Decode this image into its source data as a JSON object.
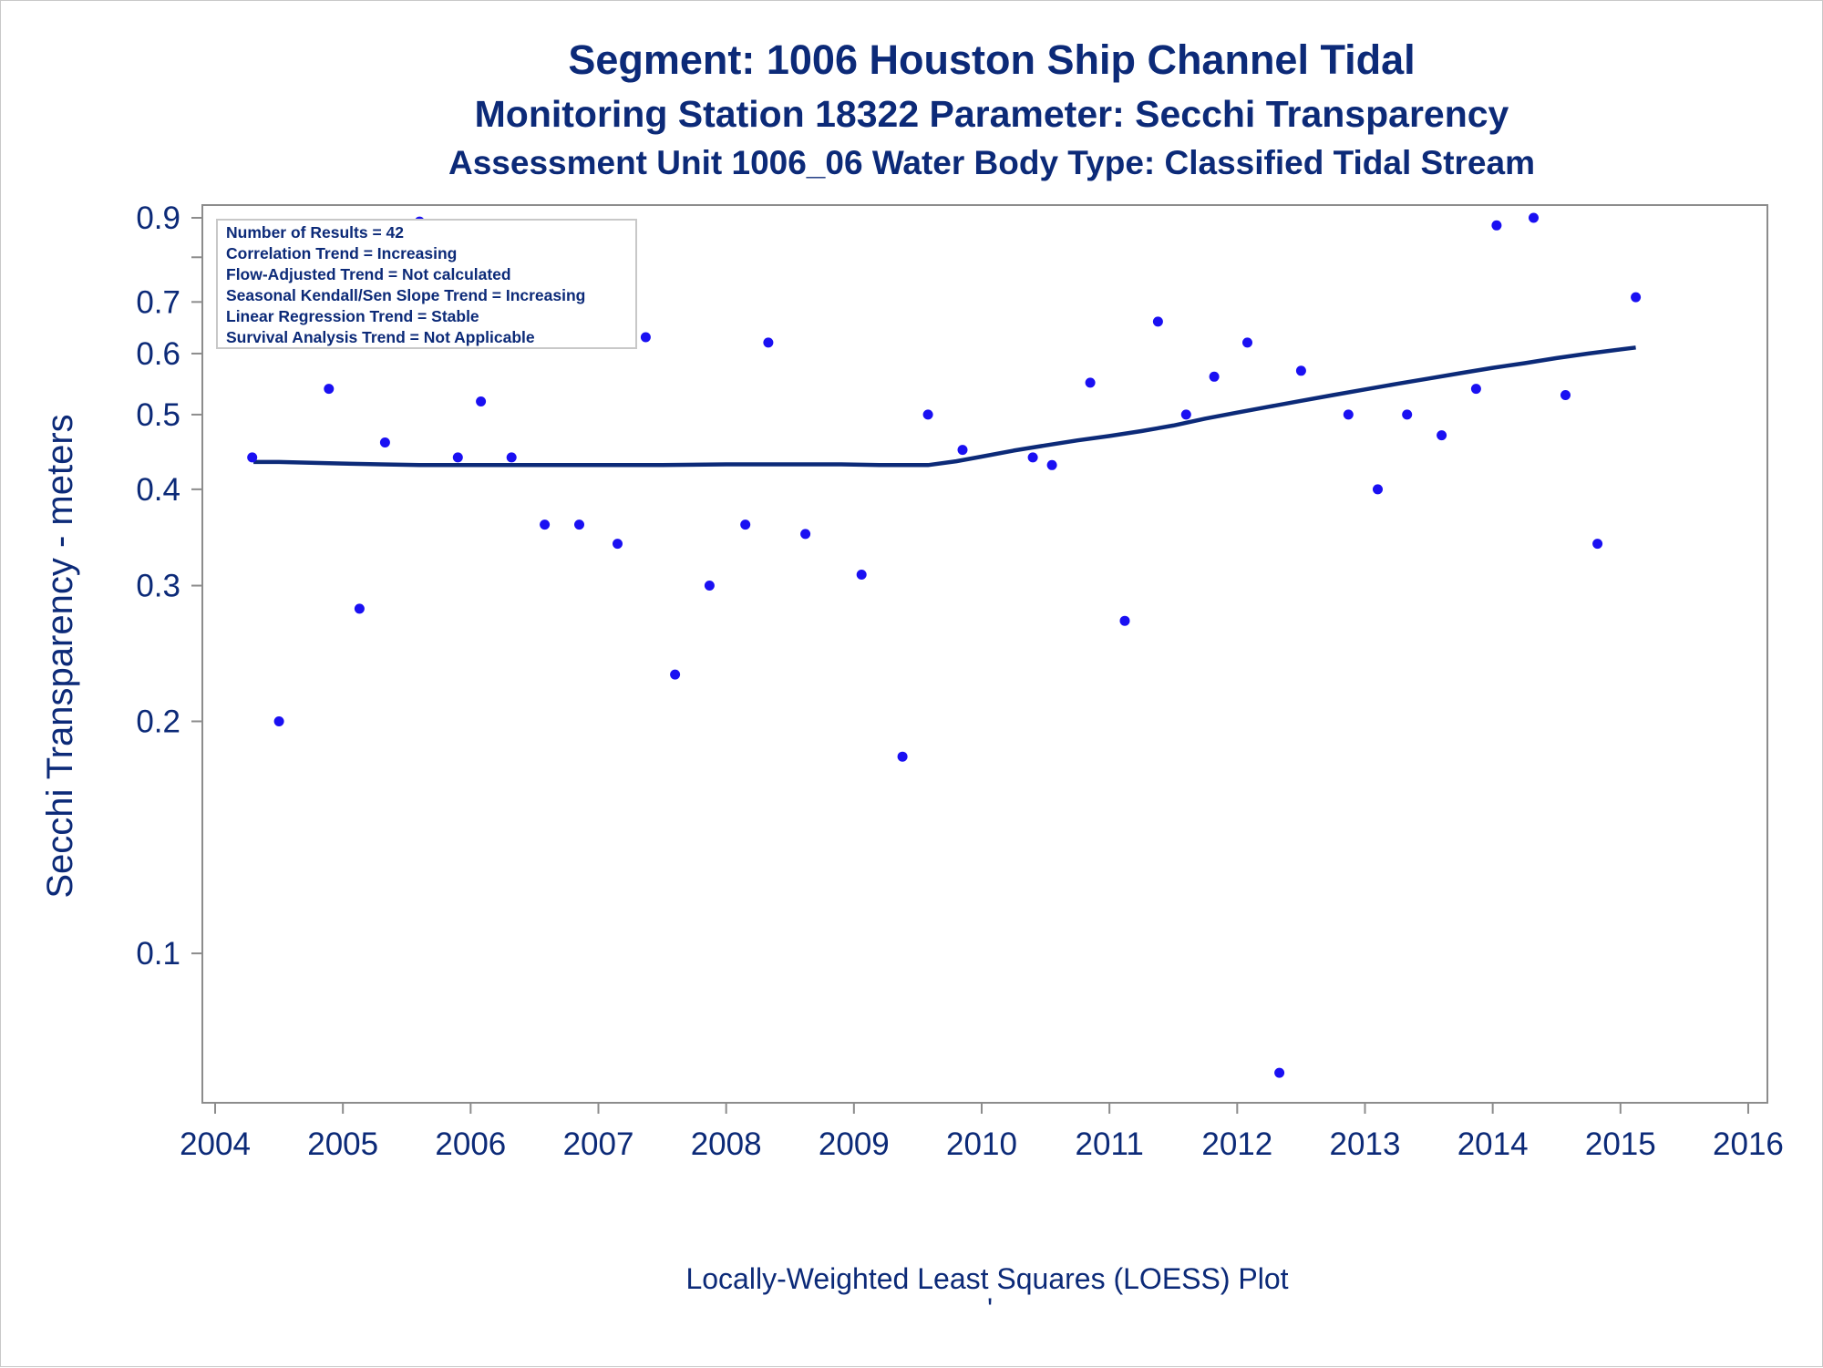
{
  "chart_data": {
    "type": "scatter",
    "title": "Segment: 1006  Houston Ship Channel Tidal",
    "subtitle": "Monitoring Station 18322 Parameter: Secchi Transparency",
    "subtitle2": "Assessment Unit 1006_06   Water Body Type: Classified Tidal Stream",
    "xlabel": "",
    "ylabel": "Secchi Transparency - meters",
    "footnote": "Locally-Weighted Least Squares (LOESS) Plot",
    "footnote2": "'",
    "y_scale": "log",
    "xlim": [
      2003.9,
      2016.15
    ],
    "ylim": [
      0.064,
      0.935
    ],
    "x_ticks": [
      "2004",
      "2005",
      "2006",
      "2007",
      "2008",
      "2009",
      "2010",
      "2011",
      "2012",
      "2013",
      "2014",
      "2015",
      "2016"
    ],
    "y_ticks": [
      "0.9",
      "0.7",
      "0.6",
      "0.5",
      "0.4",
      "0.3",
      "0.2",
      "0.1"
    ],
    "y_tick_values": [
      0.9,
      0.7,
      0.6,
      0.5,
      0.4,
      0.3,
      0.2,
      0.1
    ],
    "inset_lines": [
      "Number of Results = 42",
      "Correlation Trend = Increasing",
      "Flow-Adjusted Trend = Not calculated",
      "Seasonal Kendall/Sen Slope Trend = Increasing",
      "Linear Regression Trend = Stable",
      "Survival Analysis Trend = Not Applicable"
    ],
    "legend": "top-left",
    "grid": false,
    "series": [
      {
        "type": "scatter",
        "color": "#1a10f2",
        "points": [
          [
            2004.29,
            0.44
          ],
          [
            2004.5,
            0.2
          ],
          [
            2004.89,
            0.54
          ],
          [
            2005.13,
            0.28
          ],
          [
            2005.33,
            0.46
          ],
          [
            2005.6,
            0.89
          ],
          [
            2005.9,
            0.44
          ],
          [
            2006.08,
            0.52
          ],
          [
            2006.32,
            0.44
          ],
          [
            2006.58,
            0.36
          ],
          [
            2006.85,
            0.36
          ],
          [
            2007.15,
            0.34
          ],
          [
            2007.37,
            0.63
          ],
          [
            2007.6,
            0.23
          ],
          [
            2007.87,
            0.3
          ],
          [
            2008.15,
            0.36
          ],
          [
            2008.33,
            0.62
          ],
          [
            2008.62,
            0.35
          ],
          [
            2009.06,
            0.31
          ],
          [
            2009.38,
            0.18
          ],
          [
            2009.58,
            0.5
          ],
          [
            2009.85,
            0.45
          ],
          [
            2010.4,
            0.44
          ],
          [
            2010.55,
            0.43
          ],
          [
            2010.85,
            0.55
          ],
          [
            2011.12,
            0.27
          ],
          [
            2011.38,
            0.66
          ],
          [
            2011.6,
            0.5
          ],
          [
            2011.82,
            0.56
          ],
          [
            2012.08,
            0.62
          ],
          [
            2012.33,
            0.07
          ],
          [
            2012.5,
            0.57
          ],
          [
            2012.87,
            0.5
          ],
          [
            2013.1,
            0.4
          ],
          [
            2013.33,
            0.5
          ],
          [
            2013.6,
            0.47
          ],
          [
            2013.87,
            0.54
          ],
          [
            2014.03,
            0.88
          ],
          [
            2014.32,
            0.9
          ],
          [
            2014.57,
            0.53
          ],
          [
            2014.82,
            0.34
          ],
          [
            2015.12,
            0.71
          ]
        ]
      },
      {
        "type": "line",
        "color": "#0c2a78",
        "points": [
          [
            2004.3,
            0.434
          ],
          [
            2004.5,
            0.434
          ],
          [
            2004.75,
            0.433
          ],
          [
            2005.0,
            0.432
          ],
          [
            2005.3,
            0.431
          ],
          [
            2005.6,
            0.43
          ],
          [
            2006.0,
            0.43
          ],
          [
            2006.5,
            0.43
          ],
          [
            2007.0,
            0.43
          ],
          [
            2007.5,
            0.43
          ],
          [
            2008.0,
            0.431
          ],
          [
            2008.5,
            0.431
          ],
          [
            2008.9,
            0.431
          ],
          [
            2009.2,
            0.43
          ],
          [
            2009.58,
            0.43
          ],
          [
            2009.8,
            0.435
          ],
          [
            2010.0,
            0.441
          ],
          [
            2010.25,
            0.449
          ],
          [
            2010.5,
            0.456
          ],
          [
            2010.75,
            0.463
          ],
          [
            2011.0,
            0.469
          ],
          [
            2011.25,
            0.476
          ],
          [
            2011.5,
            0.484
          ],
          [
            2011.75,
            0.494
          ],
          [
            2012.0,
            0.503
          ],
          [
            2012.25,
            0.512
          ],
          [
            2012.5,
            0.521
          ],
          [
            2012.75,
            0.53
          ],
          [
            2013.0,
            0.539
          ],
          [
            2013.25,
            0.548
          ],
          [
            2013.5,
            0.557
          ],
          [
            2013.75,
            0.566
          ],
          [
            2014.0,
            0.575
          ],
          [
            2014.25,
            0.583
          ],
          [
            2014.5,
            0.592
          ],
          [
            2014.75,
            0.6
          ],
          [
            2015.12,
            0.611
          ]
        ]
      }
    ]
  }
}
